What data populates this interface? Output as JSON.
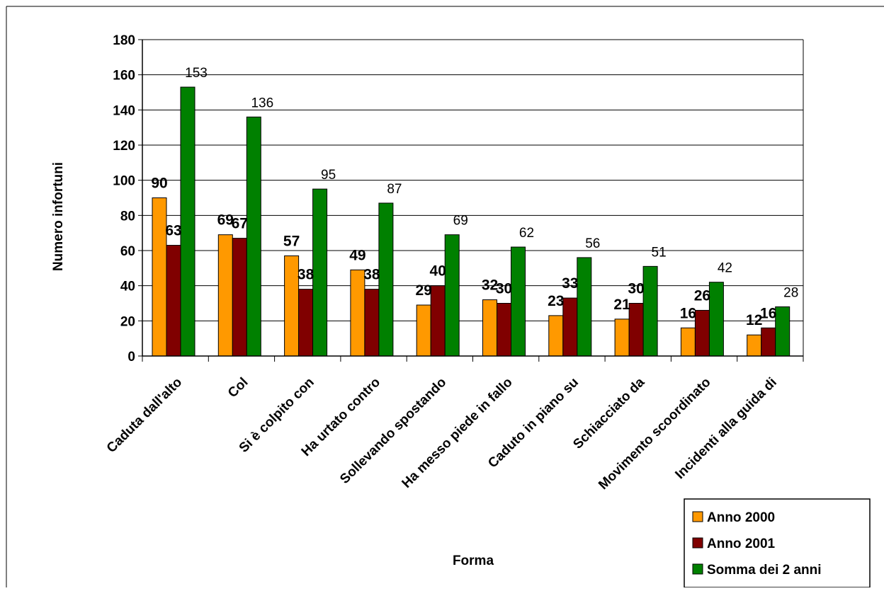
{
  "chart_data": {
    "type": "bar",
    "title": "",
    "xlabel": "Forma",
    "ylabel": "Numero infortuni",
    "ylim": [
      0,
      180
    ],
    "y_ticks": [
      0,
      20,
      40,
      60,
      80,
      100,
      120,
      140,
      160,
      180
    ],
    "grid": true,
    "legend_position": "bottom-right",
    "categories": [
      "Caduta dall'alto",
      "Col",
      "Si è colpito con",
      "Ha urtato contro",
      "Sollevando spostando",
      "Ha messo piede in fallo",
      "Caduto in piano su",
      "Schiacciato da",
      "Movimento scoordinato",
      "Incidenti alla guida di"
    ],
    "series": [
      {
        "name": "Anno 2000",
        "color": "#ff9900",
        "values": [
          90,
          69,
          57,
          49,
          29,
          32,
          23,
          21,
          16,
          12
        ]
      },
      {
        "name": "Anno 2001",
        "color": "#800000",
        "values": [
          63,
          67,
          38,
          38,
          40,
          30,
          33,
          30,
          26,
          16
        ]
      },
      {
        "name": "Somma dei 2 anni",
        "color": "#008000",
        "values": [
          153,
          136,
          95,
          87,
          69,
          62,
          56,
          51,
          42,
          28
        ]
      }
    ]
  }
}
